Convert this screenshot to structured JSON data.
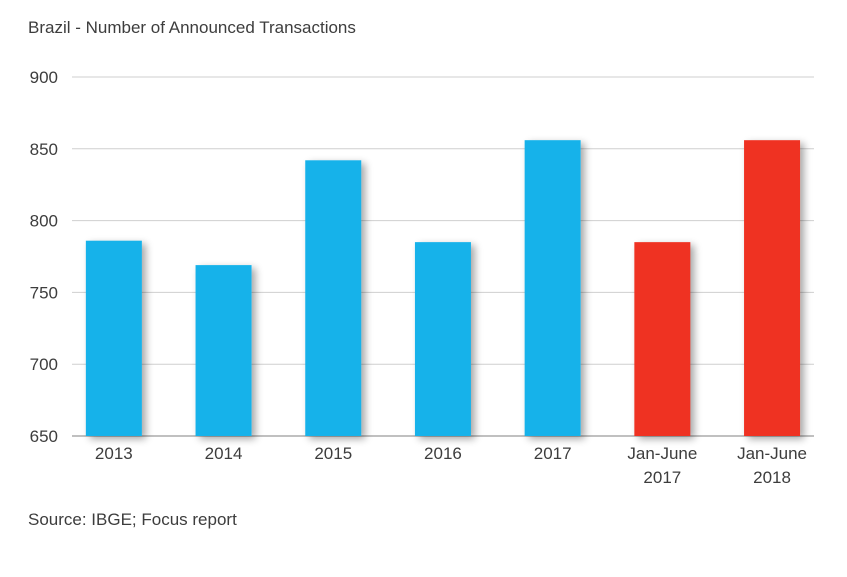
{
  "chart_data": {
    "type": "bar",
    "title": "Brazil - Number of Announced Transactions",
    "source": "Source: IBGE; Focus report",
    "categories": [
      [
        "2013"
      ],
      [
        "2014"
      ],
      [
        "2015"
      ],
      [
        "2016"
      ],
      [
        "2017"
      ],
      [
        "Jan-June",
        "2017"
      ],
      [
        "Jan-June",
        "2018"
      ]
    ],
    "values": [
      786,
      769,
      842,
      785,
      856,
      785,
      856
    ],
    "bar_colors": [
      "#15b2ea",
      "#15b2ea",
      "#15b2ea",
      "#15b2ea",
      "#15b2ea",
      "#ef3124",
      "#ef3124"
    ],
    "ylim": [
      650,
      900
    ],
    "yticks": [
      "650",
      "700",
      "750",
      "800",
      "850",
      "900"
    ],
    "grid": true,
    "xlabel": "",
    "ylabel": ""
  }
}
